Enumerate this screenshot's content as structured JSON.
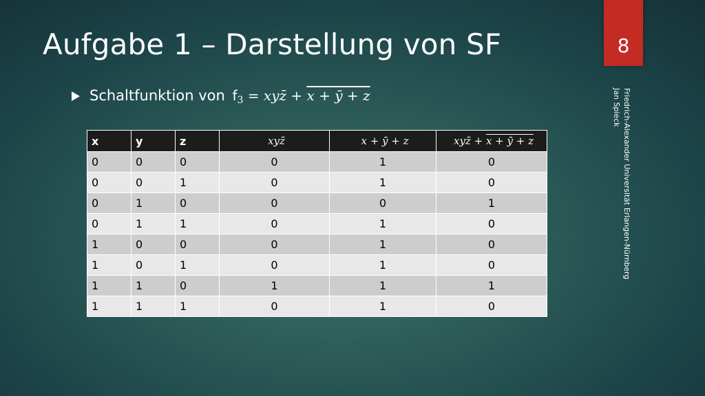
{
  "slide": {
    "title": "Aufgabe 1 – Darstellung von SF",
    "page_number": "8",
    "footer_lines": [
      "Friedrich-Alexander Universität Erlangen-Nürnberg",
      "Jan Spieck"
    ]
  },
  "bullet": {
    "text": "Schaltfunktion von ",
    "fn_name": "f",
    "fn_sub": "3",
    "formula_lhs": " = xyz̄ + ",
    "formula_overline": "x + ȳ + z"
  },
  "table": {
    "headers": [
      "x",
      "y",
      "z",
      "xyz̄",
      "x + ȳ + z",
      "xyz̄ + "
    ],
    "header_last_overline": "x + ȳ + z",
    "rows": [
      [
        "0",
        "0",
        "0",
        "0",
        "1",
        "0"
      ],
      [
        "0",
        "0",
        "1",
        "0",
        "1",
        "0"
      ],
      [
        "0",
        "1",
        "0",
        "0",
        "0",
        "1"
      ],
      [
        "0",
        "1",
        "1",
        "0",
        "1",
        "0"
      ],
      [
        "1",
        "0",
        "0",
        "0",
        "1",
        "0"
      ],
      [
        "1",
        "0",
        "1",
        "0",
        "1",
        "0"
      ],
      [
        "1",
        "1",
        "0",
        "1",
        "1",
        "1"
      ],
      [
        "1",
        "1",
        "1",
        "0",
        "1",
        "0"
      ]
    ]
  },
  "colors": {
    "badge": "#c42b23",
    "header_bg": "#1c1c1c",
    "row_odd": "#cdcdcd",
    "row_even": "#e8e8e8"
  }
}
